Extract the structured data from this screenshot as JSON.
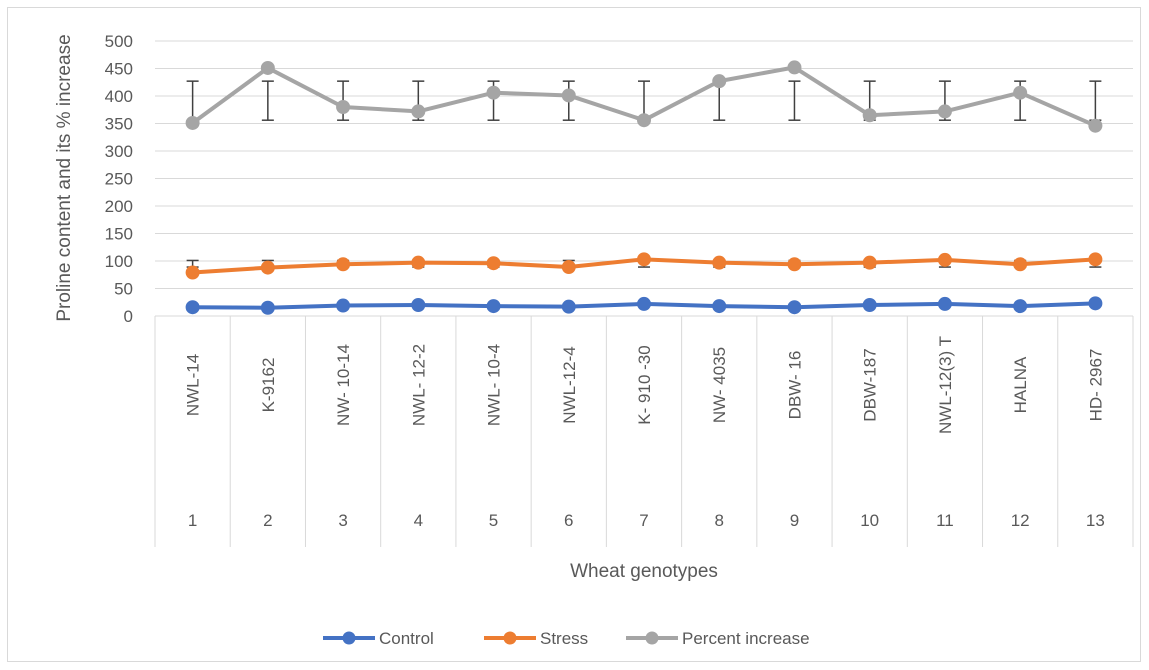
{
  "chart_data": {
    "type": "line",
    "title": "",
    "xlabel": "Wheat genotypes",
    "ylabel": "Proline content and its % increase",
    "ylim": [
      0,
      500
    ],
    "y_ticks": [
      0,
      50,
      100,
      150,
      200,
      250,
      300,
      350,
      400,
      450,
      500
    ],
    "grid": true,
    "legend_position": "bottom",
    "categories": [
      {
        "number": "1",
        "name": "NWL-14"
      },
      {
        "number": "2",
        "name": "K-9162"
      },
      {
        "number": "3",
        "name": "NW- 10-14"
      },
      {
        "number": "4",
        "name": "NWL- 12-2"
      },
      {
        "number": "5",
        "name": "NWL- 10-4"
      },
      {
        "number": "6",
        "name": "NWL-12-4"
      },
      {
        "number": "7",
        "name": "K- 910 -30"
      },
      {
        "number": "8",
        "name": "NW- 4035"
      },
      {
        "number": "9",
        "name": "DBW- 16"
      },
      {
        "number": "10",
        "name": "DBW-187"
      },
      {
        "number": "11",
        "name": "NWL-12(3) T"
      },
      {
        "number": "12",
        "name": "HALNA"
      },
      {
        "number": "13",
        "name": "HD- 2967"
      }
    ],
    "series": [
      {
        "name": "Control",
        "color": "#4472c4",
        "values": [
          16,
          15,
          19,
          20,
          18,
          17,
          22,
          18,
          16,
          20,
          22,
          18,
          23
        ]
      },
      {
        "name": "Stress",
        "color": "#ed7d31",
        "values": [
          79,
          88,
          94,
          97,
          96,
          89,
          103,
          97,
          94,
          97,
          102,
          94,
          103
        ]
      },
      {
        "name": "Percent increase",
        "color": "#a5a5a5",
        "values": [
          351,
          451,
          380,
          372,
          406,
          401,
          356,
          427,
          452,
          365,
          372,
          406,
          346
        ]
      }
    ],
    "error_bars": [
      {
        "series": "Stress",
        "low": 89,
        "high": 101
      },
      {
        "series": "Percent increase",
        "low": 356,
        "high": 427
      }
    ]
  }
}
